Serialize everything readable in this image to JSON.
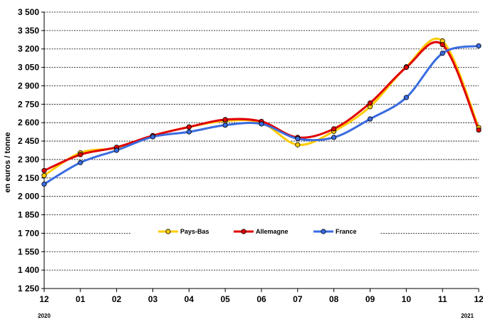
{
  "chart_data": {
    "type": "line",
    "title": "",
    "xlabel": "",
    "ylabel": "en euros / tonne",
    "categories": [
      "12",
      "01",
      "02",
      "03",
      "04",
      "05",
      "06",
      "07",
      "08",
      "09",
      "10",
      "11",
      "12"
    ],
    "year_labels": [
      {
        "text": "2020",
        "index": 0
      },
      {
        "text": "2021",
        "index": 12
      }
    ],
    "ylim": [
      1250,
      3500
    ],
    "yticks": [
      1250,
      1400,
      1550,
      1700,
      1850,
      2000,
      2150,
      2300,
      2450,
      2600,
      2750,
      2900,
      3050,
      3200,
      3350,
      3500
    ],
    "ytick_labels": [
      "1 250",
      "1 400",
      "1 550",
      "1 700",
      "1 850",
      "2 000",
      "2 150",
      "2 300",
      "2 450",
      "2 600",
      "2 750",
      "2 900",
      "3 050",
      "3 200",
      "3 350",
      "3 500"
    ],
    "grid": "horizontal dashed",
    "legend_position": "center",
    "series": [
      {
        "name": "Pays-Bas",
        "color": "#FFCC00",
        "values": [
          2170,
          2355,
          2395,
          2495,
          2565,
          2615,
          2600,
          2420,
          2530,
          2730,
          3055,
          3265,
          2560
        ]
      },
      {
        "name": "Allemagne",
        "color": "#E00000",
        "values": [
          2210,
          2340,
          2400,
          2495,
          2565,
          2625,
          2610,
          2480,
          2550,
          2760,
          3050,
          3235,
          2540
        ]
      },
      {
        "name": "France",
        "color": "#3A6BE0",
        "values": [
          2100,
          2275,
          2375,
          2485,
          2525,
          2580,
          2590,
          2470,
          2480,
          2630,
          2805,
          3165,
          3225
        ]
      }
    ]
  }
}
